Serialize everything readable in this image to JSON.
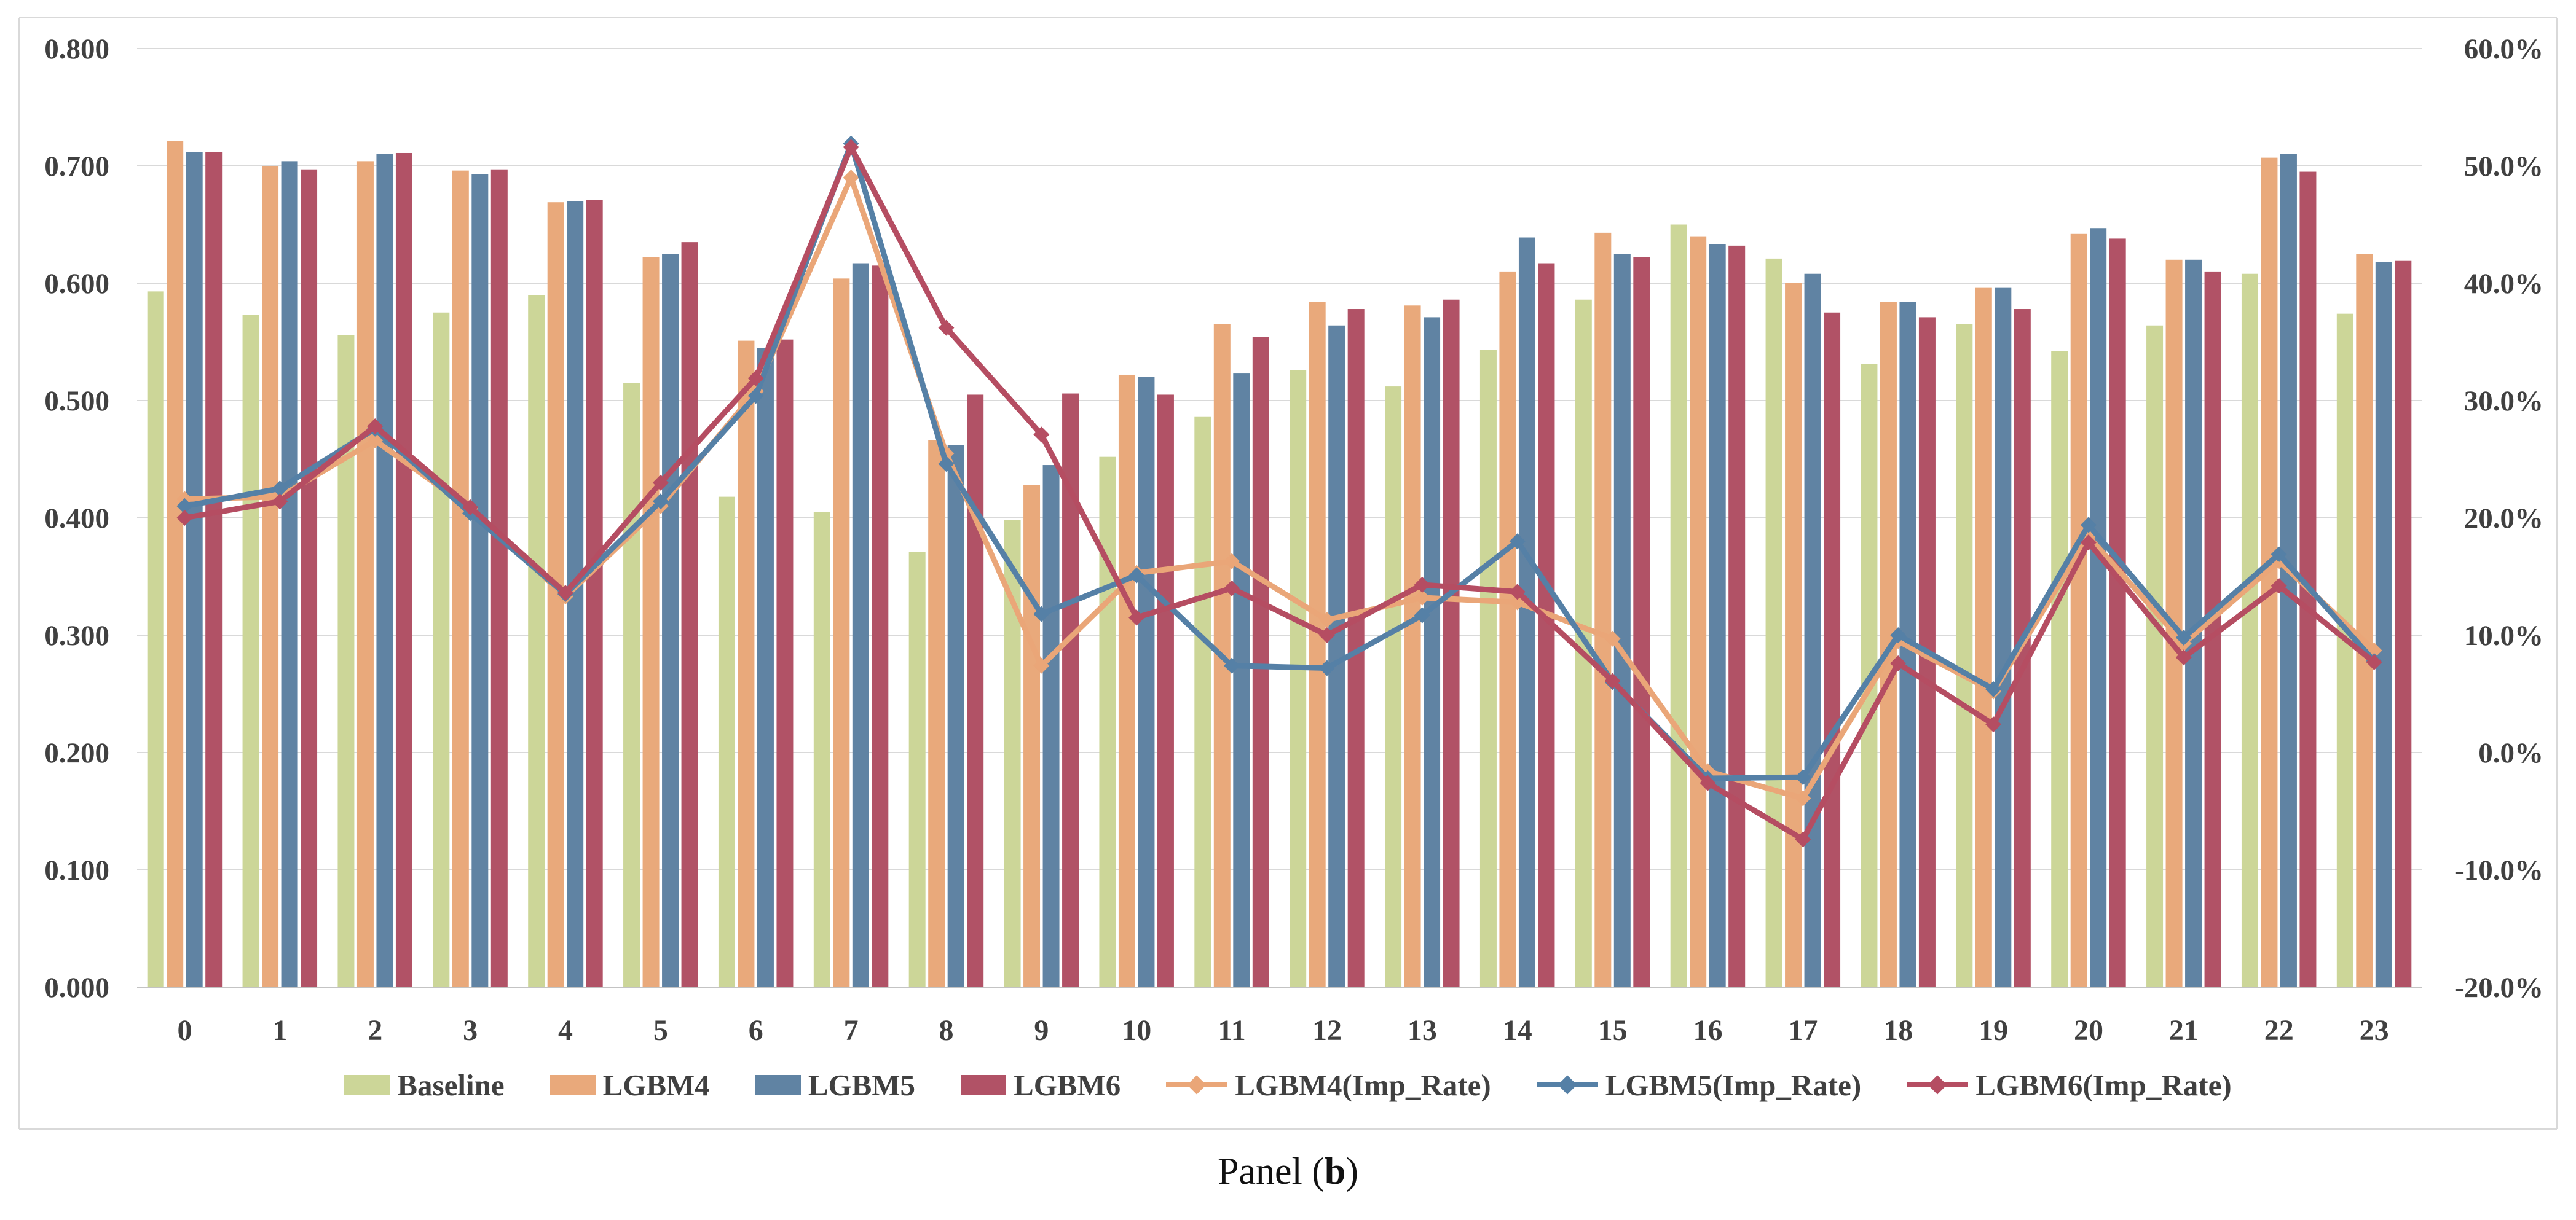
{
  "figure": {
    "caption": {
      "prefix": "Panel (",
      "bold": "b",
      "suffix": ")"
    }
  },
  "chart_data": {
    "type": "combo-bar-line",
    "title": "",
    "xlabel": "",
    "ylabel": "",
    "grid": true,
    "legend_position": "bottom",
    "categories": [
      "0",
      "1",
      "2",
      "3",
      "4",
      "5",
      "6",
      "7",
      "8",
      "9",
      "10",
      "11",
      "12",
      "13",
      "14",
      "15",
      "16",
      "17",
      "18",
      "19",
      "20",
      "21",
      "22",
      "23"
    ],
    "left_axis": {
      "min": 0.0,
      "max": 0.8,
      "tick_step": 0.1,
      "tick_labels": [
        "0.000",
        "0.100",
        "0.200",
        "0.300",
        "0.400",
        "0.500",
        "0.600",
        "0.700",
        "0.800"
      ]
    },
    "right_axis": {
      "min": -20.0,
      "max": 60.0,
      "tick_step": 10.0,
      "tick_labels": [
        "-20.0%",
        "-10.0%",
        "0.0%",
        "10.0%",
        "20.0%",
        "30.0%",
        "40.0%",
        "50.0%",
        "60.0%"
      ]
    },
    "bar_series": [
      {
        "name": "Baseline",
        "color": "#ccd698",
        "axis": "left",
        "values": [
          0.593,
          0.573,
          0.556,
          0.575,
          0.59,
          0.515,
          0.418,
          0.405,
          0.371,
          0.398,
          0.452,
          0.486,
          0.526,
          0.512,
          0.543,
          0.586,
          0.65,
          0.621,
          0.531,
          0.565,
          0.542,
          0.564,
          0.608,
          0.574
        ]
      },
      {
        "name": "LGBM4",
        "color": "#e9a97b",
        "axis": "left",
        "values": [
          0.721,
          0.7,
          0.704,
          0.696,
          0.669,
          0.622,
          0.551,
          0.604,
          0.466,
          0.428,
          0.522,
          0.565,
          0.584,
          0.581,
          0.61,
          0.643,
          0.64,
          0.6,
          0.584,
          0.596,
          0.642,
          0.62,
          0.707,
          0.625
        ]
      },
      {
        "name": "LGBM5",
        "color": "#6083a3",
        "axis": "left",
        "values": [
          0.712,
          0.704,
          0.71,
          0.693,
          0.67,
          0.625,
          0.545,
          0.617,
          0.462,
          0.445,
          0.52,
          0.523,
          0.564,
          0.571,
          0.639,
          0.625,
          0.633,
          0.608,
          0.584,
          0.596,
          0.647,
          0.62,
          0.71,
          0.618
        ]
      },
      {
        "name": "LGBM6",
        "color": "#b15266",
        "axis": "left",
        "values": [
          0.712,
          0.697,
          0.711,
          0.697,
          0.671,
          0.635,
          0.552,
          0.615,
          0.505,
          0.506,
          0.505,
          0.554,
          0.578,
          0.586,
          0.617,
          0.622,
          0.632,
          0.575,
          0.571,
          0.578,
          0.638,
          0.61,
          0.695,
          0.619
        ]
      }
    ],
    "line_series": [
      {
        "name": "LGBM4(Imp_Rate)",
        "color": "#eaa678",
        "marker": "diamond",
        "axis": "right",
        "values_pct": [
          21.6,
          21.8,
          26.6,
          20.8,
          13.3,
          21.0,
          30.8,
          49.0,
          25.5,
          7.4,
          15.3,
          16.3,
          11.3,
          13.2,
          12.8,
          9.7,
          -1.6,
          -3.9,
          9.5,
          5.2,
          18.4,
          9.3,
          16.3,
          8.7
        ]
      },
      {
        "name": "LGBM5(Imp_Rate)",
        "color": "#5580a6",
        "marker": "diamond",
        "axis": "right",
        "values_pct": [
          21.0,
          22.5,
          27.6,
          20.4,
          13.5,
          21.4,
          30.4,
          51.9,
          24.6,
          11.8,
          15.1,
          7.4,
          7.2,
          11.7,
          18.0,
          6.0,
          -2.2,
          -2.1,
          10.0,
          5.4,
          19.4,
          9.8,
          16.9,
          7.8
        ]
      },
      {
        "name": "LGBM6(Imp_Rate)",
        "color": "#b54d62",
        "marker": "diamond",
        "axis": "right",
        "values_pct": [
          20.0,
          21.4,
          27.8,
          20.9,
          13.6,
          23.0,
          31.9,
          51.6,
          36.2,
          27.1,
          11.5,
          14.0,
          10.0,
          14.3,
          13.7,
          6.1,
          -2.6,
          -7.4,
          7.6,
          2.4,
          17.9,
          8.1,
          14.2,
          7.7
        ]
      }
    ],
    "style": {
      "gridline_color": "#d9d9d9",
      "axis_line_color": "#c3c3c3",
      "border_color": "#d9d9d9",
      "tick_text_color": "#404040",
      "background": "#ffffff"
    }
  }
}
